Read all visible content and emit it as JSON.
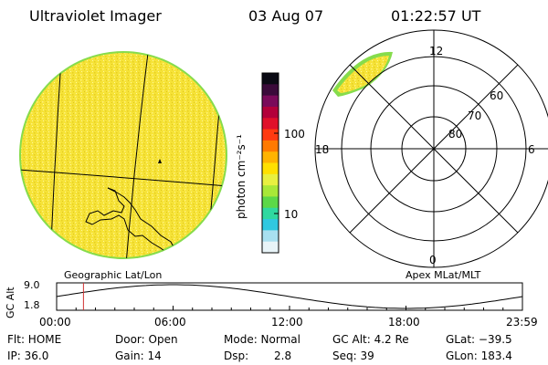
{
  "header": {
    "instrument": "Ultraviolet Imager",
    "date": "03 Aug 07",
    "time": "01:22:57 UT"
  },
  "left_panel": {
    "caption": "Geographic Lat/Lon",
    "fill_color": "#f5e43a",
    "rim_color": "#7fd84a"
  },
  "colorbar": {
    "unit_label": "photon cm⁻²s⁻¹",
    "ticks": [
      "100",
      "10"
    ],
    "colors": [
      "#0a0a14",
      "#3a0a3a",
      "#7a0a5a",
      "#b3003a",
      "#e0102a",
      "#ff3a10",
      "#ff7a00",
      "#ffb300",
      "#ffe000",
      "#e8f040",
      "#a8e838",
      "#5cd848",
      "#30d8a0",
      "#30c8e0",
      "#a8e0f0",
      "#e8f4f8"
    ]
  },
  "right_panel": {
    "caption": "Apex MLat/MLT",
    "mlt_labels": {
      "top": "12",
      "left": "18",
      "right": "6",
      "bottom": "0"
    },
    "lat_labels": [
      "60",
      "70",
      "80"
    ]
  },
  "altitude_strip": {
    "axis_label": "GC Alt",
    "y_top": "9.0",
    "y_bottom": "1.8",
    "x_ticks": [
      "00:00",
      "06:00",
      "12:00",
      "18:00",
      "23:59"
    ],
    "marker_time": "01:22:57"
  },
  "status": {
    "flt": "Flt: HOME",
    "ip": "IP: 36.0",
    "door": "Door: Open",
    "gain": "Gain: 14",
    "mode": "Mode: Normal",
    "dsp_label": "Dsp:",
    "dsp_value": "2.8",
    "gcalt": "GC Alt: 4.2 Re",
    "seq": "Seq: 39",
    "glat": "GLat: −39.5",
    "glon": "GLon: 183.4"
  }
}
